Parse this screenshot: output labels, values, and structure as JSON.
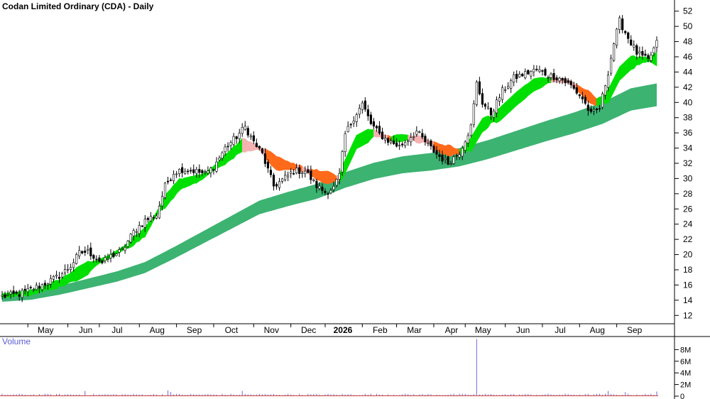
{
  "chart_data": {
    "type": "candlestick",
    "title": "Codan Limited Ordinary (CDA) - Daily",
    "price_axis": {
      "ylim": [
        11,
        53
      ],
      "ticks": [
        12,
        14,
        16,
        18,
        20,
        22,
        24,
        26,
        28,
        30,
        32,
        34,
        36,
        38,
        40,
        42,
        44,
        46,
        48,
        50,
        52
      ]
    },
    "month_labels": [
      "May",
      "Jun",
      "Jul",
      "Aug",
      "Sep",
      "Oct",
      "Nov",
      "Dec",
      "2026",
      "Feb",
      "Mar",
      "Apr",
      "May",
      "Jun",
      "Jul",
      "Aug",
      "Sep"
    ],
    "price_path": [
      [
        0,
        14.5
      ],
      [
        6,
        14.8
      ],
      [
        14,
        16.0
      ],
      [
        20,
        17.2
      ],
      [
        24,
        18.5
      ],
      [
        27,
        20.2
      ],
      [
        30,
        20.4
      ],
      [
        33,
        19.5
      ],
      [
        35,
        18.9
      ],
      [
        38,
        19.8
      ],
      [
        42,
        20.5
      ],
      [
        46,
        23.0
      ],
      [
        50,
        24.5
      ],
      [
        54,
        25.2
      ],
      [
        57,
        29.0
      ],
      [
        60,
        30.8
      ],
      [
        63,
        31.2
      ],
      [
        67,
        31.0
      ],
      [
        71,
        30.6
      ],
      [
        74,
        31.5
      ],
      [
        78,
        34.0
      ],
      [
        82,
        35.5
      ],
      [
        85,
        36.8
      ],
      [
        88,
        34.8
      ],
      [
        91,
        33.2
      ],
      [
        95,
        29.0
      ],
      [
        98,
        29.8
      ],
      [
        102,
        31.0
      ],
      [
        106,
        31.0
      ],
      [
        110,
        29.0
      ],
      [
        113,
        28.2
      ],
      [
        116,
        28.8
      ],
      [
        118,
        30.4
      ],
      [
        120,
        35.8
      ],
      [
        123,
        38.0
      ],
      [
        126,
        39.8
      ],
      [
        129,
        37.2
      ],
      [
        132,
        35.8
      ],
      [
        135,
        35.0
      ],
      [
        139,
        34.2
      ],
      [
        142,
        35.2
      ],
      [
        145,
        36.2
      ],
      [
        148,
        34.8
      ],
      [
        152,
        33.2
      ],
      [
        156,
        32.0
      ],
      [
        160,
        33.5
      ],
      [
        164,
        36.8
      ],
      [
        166,
        42.5
      ],
      [
        168,
        40.0
      ],
      [
        171,
        38.5
      ],
      [
        175,
        41.5
      ],
      [
        179,
        43.2
      ],
      [
        183,
        43.8
      ],
      [
        187,
        44.3
      ],
      [
        191,
        43.6
      ],
      [
        195,
        43.2
      ],
      [
        199,
        42.2
      ],
      [
        203,
        40.5
      ],
      [
        206,
        38.4
      ],
      [
        209,
        39.2
      ],
      [
        212,
        44.0
      ],
      [
        214,
        47.8
      ],
      [
        216,
        50.7
      ],
      [
        219,
        48.5
      ],
      [
        222,
        46.5
      ],
      [
        226,
        45.5
      ],
      [
        229,
        47.8
      ]
    ],
    "ema_short_path": [
      [
        0,
        14.6
      ],
      [
        10,
        15.0
      ],
      [
        20,
        16.2
      ],
      [
        28,
        17.8
      ],
      [
        33,
        18.9
      ],
      [
        38,
        19.8
      ],
      [
        44,
        21.2
      ],
      [
        50,
        23.0
      ],
      [
        56,
        26.5
      ],
      [
        62,
        29.2
      ],
      [
        70,
        30.2
      ],
      [
        78,
        32.5
      ],
      [
        84,
        34.4
      ],
      [
        90,
        34.0
      ],
      [
        96,
        32.0
      ],
      [
        104,
        31.4
      ],
      [
        112,
        30.2
      ],
      [
        118,
        30.0
      ],
      [
        124,
        34.8
      ],
      [
        130,
        36.0
      ],
      [
        136,
        35.2
      ],
      [
        142,
        35.4
      ],
      [
        148,
        35.0
      ],
      [
        154,
        33.8
      ],
      [
        160,
        33.5
      ],
      [
        164,
        34.5
      ],
      [
        168,
        37.0
      ],
      [
        174,
        38.4
      ],
      [
        180,
        40.5
      ],
      [
        186,
        42.3
      ],
      [
        192,
        43.0
      ],
      [
        198,
        42.8
      ],
      [
        203,
        41.4
      ],
      [
        208,
        40.0
      ],
      [
        212,
        40.8
      ],
      [
        216,
        43.8
      ],
      [
        220,
        45.2
      ],
      [
        224,
        45.6
      ],
      [
        229,
        45.7
      ]
    ],
    "ema_long_path": [
      [
        0,
        14.3
      ],
      [
        10,
        14.6
      ],
      [
        20,
        15.3
      ],
      [
        30,
        16.2
      ],
      [
        40,
        17.1
      ],
      [
        50,
        18.3
      ],
      [
        60,
        20.2
      ],
      [
        70,
        22.2
      ],
      [
        80,
        24.2
      ],
      [
        90,
        26.2
      ],
      [
        100,
        27.3
      ],
      [
        110,
        28.3
      ],
      [
        120,
        29.8
      ],
      [
        130,
        31.0
      ],
      [
        140,
        31.8
      ],
      [
        150,
        32.2
      ],
      [
        160,
        32.8
      ],
      [
        170,
        33.8
      ],
      [
        180,
        35.0
      ],
      [
        190,
        36.2
      ],
      [
        200,
        37.3
      ],
      [
        210,
        38.6
      ],
      [
        220,
        40.4
      ],
      [
        229,
        41.0
      ]
    ],
    "band_widths": {
      "short": [
        0.5,
        1.8
      ],
      "long": [
        1.0,
        3.0
      ]
    },
    "volume_axis": {
      "title": "Volume",
      "ylim": [
        0,
        10000000
      ],
      "ticks": [
        {
          "value": 0,
          "label": "0"
        },
        {
          "value": 2000000,
          "label": "2M"
        },
        {
          "value": 4000000,
          "label": "4M"
        },
        {
          "value": 6000000,
          "label": "6M"
        },
        {
          "value": 8000000,
          "label": "8M"
        }
      ]
    },
    "volume_base": 250000,
    "volume_spikes": [
      {
        "bar": 29,
        "value": 900000
      },
      {
        "bar": 58,
        "value": 1000000
      },
      {
        "bar": 59,
        "value": 700000
      },
      {
        "bar": 84,
        "value": 900000
      },
      {
        "bar": 166,
        "value": 9800000
      },
      {
        "bar": 212,
        "value": 900000
      },
      {
        "bar": 218,
        "value": 700000
      },
      {
        "bar": 229,
        "value": 800000
      }
    ],
    "colors": {
      "bull_band": "#00e000",
      "bear_band": "#ff6a1a",
      "neutral_band": "#f4b2b2",
      "long_band": "#3cb371",
      "candle": "#000000",
      "volume": "#6a6ad8",
      "grid": "#d8d8d8"
    }
  }
}
